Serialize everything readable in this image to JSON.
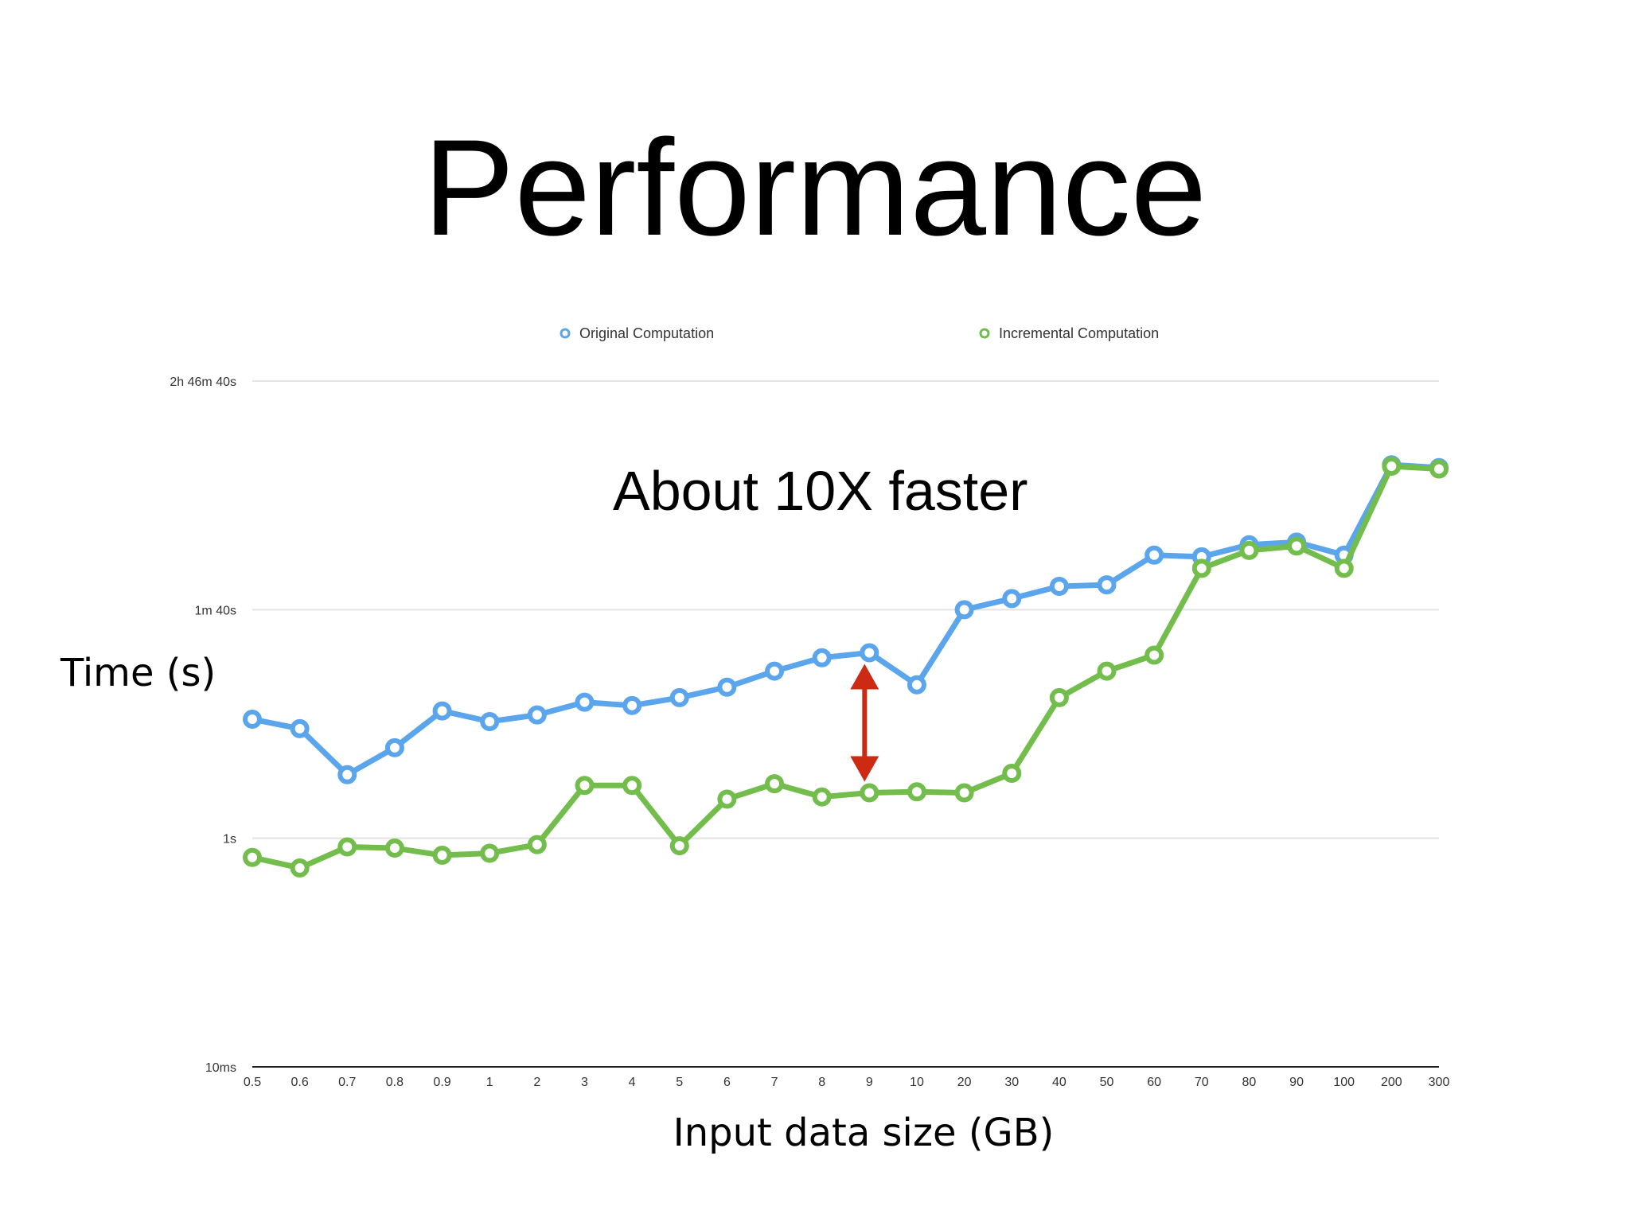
{
  "slide": {
    "title": "Performance",
    "annotation": "About 10X faster"
  },
  "colors": {
    "original": "#5aa5ec",
    "incremental": "#72bd4b",
    "arrow": "#cc2a12",
    "grid": "#e3e3e3",
    "axis": "#222222"
  },
  "chart_data": {
    "type": "line",
    "xlabel": "Input data size (GB)",
    "ylabel": "Time (s)",
    "y_scale": "log",
    "ylim_seconds": [
      0.01,
      10000
    ],
    "y_ticks": [
      {
        "value": 0.01,
        "label": "10ms"
      },
      {
        "value": 1,
        "label": "1s"
      },
      {
        "value": 100,
        "label": "1m 40s"
      },
      {
        "value": 10000,
        "label": "2h 46m 40s"
      }
    ],
    "grid": true,
    "legend_position": "top",
    "categories": [
      "0.5",
      "0.6",
      "0.7",
      "0.8",
      "0.9",
      "1",
      "2",
      "3",
      "4",
      "5",
      "6",
      "7",
      "8",
      "9",
      "10",
      "20",
      "30",
      "40",
      "50",
      "60",
      "70",
      "80",
      "90",
      "100",
      "200",
      "300"
    ],
    "series": [
      {
        "name": "Original Computation",
        "values": [
          11,
          9.1,
          3.6,
          6.2,
          13,
          10.5,
          12,
          15.5,
          14.5,
          17,
          21,
          29,
          38,
          42,
          22,
          100,
          125,
          160,
          165,
          300,
          290,
          370,
          390,
          300,
          1850,
          1750
        ]
      },
      {
        "name": "Incremental Computation",
        "values": [
          0.68,
          0.55,
          0.84,
          0.82,
          0.71,
          0.74,
          0.88,
          2.9,
          2.9,
          0.86,
          2.2,
          3.0,
          2.3,
          2.5,
          2.55,
          2.5,
          3.7,
          17,
          29,
          40,
          230,
          330,
          360,
          230,
          1800,
          1700
        ]
      }
    ],
    "annotation_arrow": {
      "category": "9",
      "from_series": "Incremental Computation",
      "to_series": "Original Computation"
    }
  }
}
